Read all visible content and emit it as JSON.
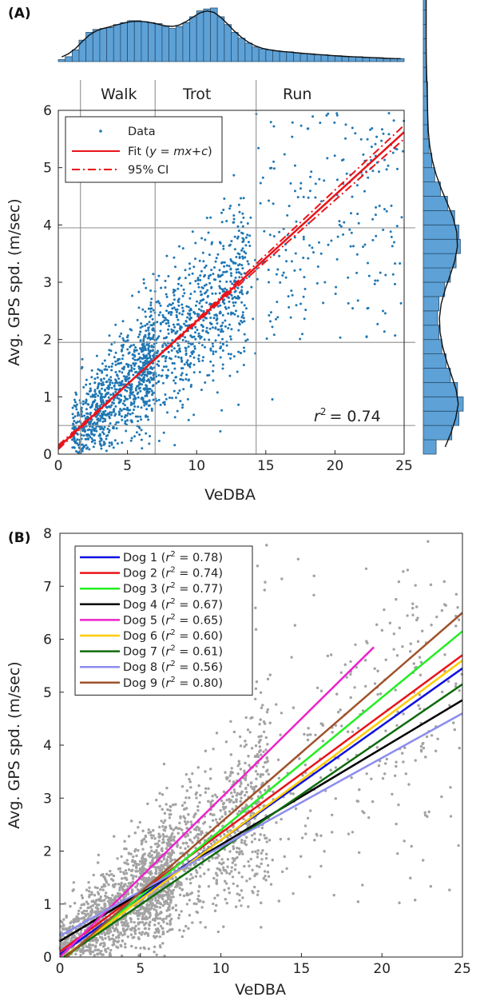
{
  "chart_data": [
    {
      "panel": "(A)",
      "type": "scatter",
      "xlabel": "VeDBA",
      "ylabel": "Avg. GPS spd. (m/sec)",
      "xlim": [
        0,
        25
      ],
      "ylim": [
        0,
        6
      ],
      "xticks": [
        "0",
        "5",
        "10",
        "15",
        "20",
        "25"
      ],
      "yticks": [
        "0",
        "1",
        "2",
        "3",
        "4",
        "5",
        "6"
      ],
      "grid": false,
      "legend_position": "top-left",
      "legend": [
        "Data",
        "Fit (y = mx+c)",
        "95% CI"
      ],
      "annotation": "r² = 0.74",
      "gait_labels": [
        "Walk",
        "Trot",
        "Run"
      ],
      "gait_vlines": [
        1.6,
        7.0,
        14.3
      ],
      "gait_hlines": [
        0.5,
        1.95,
        3.95
      ],
      "fit": {
        "slope": 0.22,
        "intercept": 0.12
      },
      "ci_offset": 0.12,
      "point_color": "#1f77b4",
      "fit_color": "#e8141a",
      "top_histogram": {
        "bin_width": 0.5,
        "counts": [
          2,
          5,
          12,
          22,
          30,
          33,
          34,
          35,
          38,
          40,
          42,
          42,
          41,
          40,
          39,
          36,
          34,
          36,
          40,
          46,
          52,
          54,
          55,
          46,
          38,
          30,
          24,
          19,
          15,
          13,
          12,
          11,
          10,
          10,
          9,
          8,
          8,
          7,
          7,
          6,
          6,
          5,
          5,
          5,
          4,
          4,
          4,
          3,
          3,
          3
        ]
      },
      "right_histogram": {
        "bin_width": 0.25,
        "counts": [
          9,
          20,
          25,
          28,
          24,
          19,
          16,
          13,
          11,
          10,
          11,
          15,
          19,
          23,
          26,
          25,
          22,
          17,
          12,
          8,
          6,
          4,
          3,
          3,
          3,
          3,
          2,
          2,
          2,
          2,
          2,
          2,
          2,
          2,
          1,
          1,
          1,
          1,
          1,
          1
        ]
      }
    },
    {
      "panel": "(B)",
      "type": "scatter",
      "xlabel": "VeDBA",
      "ylabel": "Avg. GPS spd. (m/sec)",
      "xlim": [
        0,
        25
      ],
      "ylim": [
        0,
        8
      ],
      "xticks": [
        "0",
        "5",
        "10",
        "15",
        "20",
        "25"
      ],
      "yticks": [
        "0",
        "1",
        "2",
        "3",
        "4",
        "5",
        "6",
        "7",
        "8"
      ],
      "grid": false,
      "legend_position": "top-left",
      "point_color": "#a3a3a3",
      "series": [
        {
          "name": "Dog 1",
          "r2": "0.78",
          "color": "#1010e0",
          "x": [
            0,
            25
          ],
          "y": [
            0.05,
            5.45
          ]
        },
        {
          "name": "Dog 2",
          "r2": "0.74",
          "color": "#e8141a",
          "x": [
            0,
            25
          ],
          "y": [
            0.1,
            5.7
          ]
        },
        {
          "name": "Dog 3",
          "r2": "0.77",
          "color": "#22ee22",
          "x": [
            0,
            25
          ],
          "y": [
            -0.1,
            6.15
          ]
        },
        {
          "name": "Dog 4",
          "r2": "0.67",
          "color": "#000000",
          "x": [
            0,
            25
          ],
          "y": [
            0.3,
            4.85
          ]
        },
        {
          "name": "Dog 5",
          "r2": "0.65",
          "color": "#ee22cc",
          "x": [
            0,
            19.5
          ],
          "y": [
            0.0,
            5.85
          ]
        },
        {
          "name": "Dog 6",
          "r2": "0.60",
          "color": "#ffcc00",
          "x": [
            0,
            25
          ],
          "y": [
            -0.05,
            5.6
          ]
        },
        {
          "name": "Dog 7",
          "r2": "0.61",
          "color": "#0e6b0e",
          "x": [
            0,
            25
          ],
          "y": [
            -0.05,
            5.15
          ]
        },
        {
          "name": "Dog 8",
          "r2": "0.56",
          "color": "#8c8cf0",
          "x": [
            0,
            25
          ],
          "y": [
            0.4,
            4.6
          ]
        },
        {
          "name": "Dog 9",
          "r2": "0.80",
          "color": "#a0522d",
          "x": [
            0,
            25
          ],
          "y": [
            -0.1,
            6.5
          ]
        }
      ]
    }
  ],
  "labels": {
    "panel_a": "(A)",
    "panel_b": "(B)",
    "walk": "Walk",
    "trot": "Trot",
    "run": "Run",
    "xlabel_a": "VeDBA",
    "ylabel_a": "Avg. GPS spd. (m/sec)",
    "xlabel_b": "VeDBA",
    "ylabel_b": "Avg. GPS spd. (m/sec)",
    "legend_data": "Data",
    "legend_fit": "Fit (",
    "legend_fit_var": "y = mx+c",
    "legend_fit_end": ")",
    "legend_ci": "95% CI",
    "r2_annotation": "= 0.74",
    "r2_symbol": "r",
    "r2_sup": "2"
  }
}
